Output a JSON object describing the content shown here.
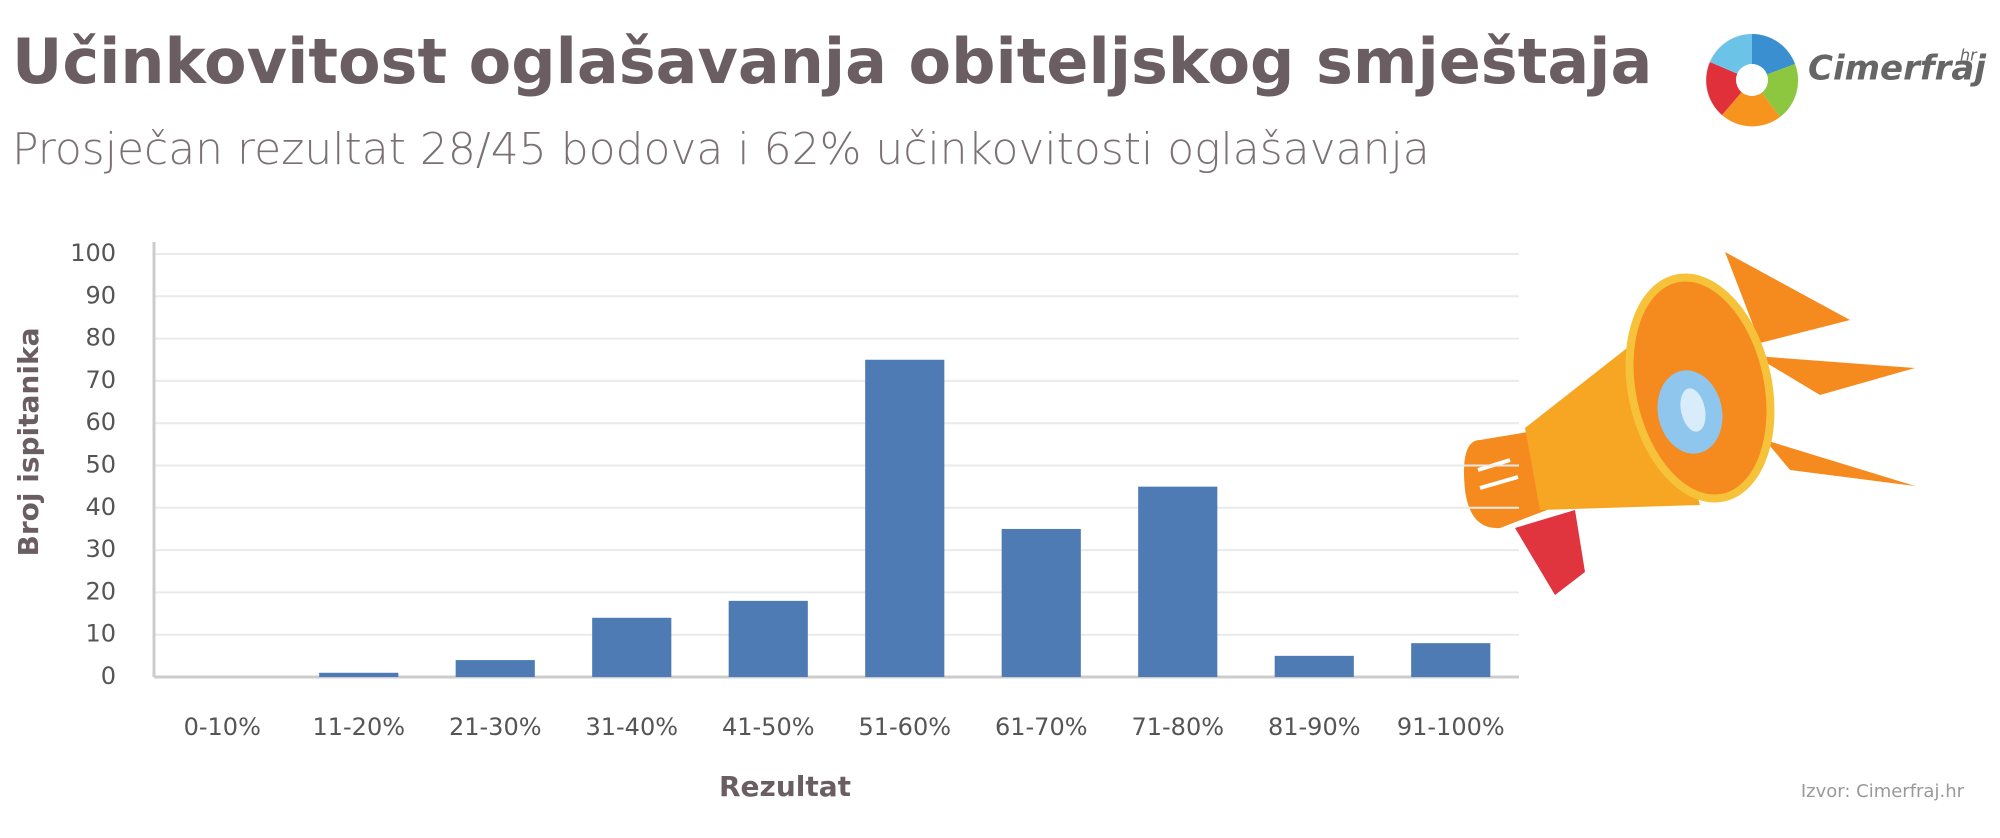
{
  "chart_data": {
    "type": "bar",
    "title": "Učinkovitost oglašavanja obiteljskog smještaja",
    "subtitle": "Prosječan rezultat 28/45 bodova i 62% učinkovitosti oglašavanja",
    "x_label": "Rezultat",
    "y_label": "Broj ispitanika",
    "categories": [
      "0-10%",
      "11-20%",
      "21-30%",
      "31-40%",
      "41-50%",
      "51-60%",
      "61-70%",
      "71-80%",
      "81-90%",
      "91-100%"
    ],
    "values": [
      0,
      1,
      4,
      14,
      18,
      75,
      35,
      45,
      5,
      8
    ],
    "color": "#4f7bb5",
    "ylim": [
      0,
      100
    ],
    "yticks": [
      0,
      10,
      20,
      30,
      40,
      50,
      60,
      70,
      80,
      90,
      100
    ],
    "grid": true,
    "source": "Izvor: Cimerfraj.hr"
  },
  "logo": {
    "name": "Cimerfraj",
    "suffix": "hr"
  }
}
